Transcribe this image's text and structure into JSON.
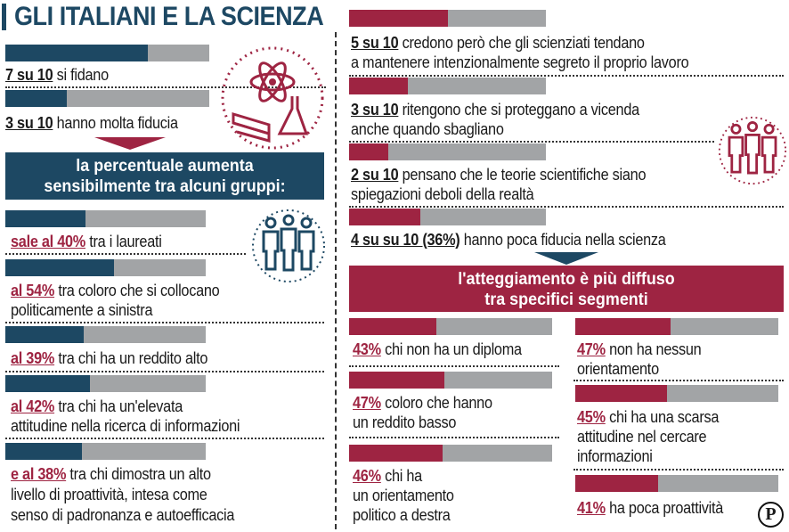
{
  "title": "GLI ITALIANI E LA SCIENZA",
  "colors": {
    "blue": "#1d4863",
    "red": "#9e2442",
    "grey": "#a2a4a6"
  },
  "left_top": [
    {
      "num": "7  su 10",
      "text": " si fidano",
      "fill": 0.7
    },
    {
      "num": "3 su 10",
      "text": " hanno molta fiducia",
      "fill": 0.3
    }
  ],
  "left_banner": {
    "line1": "la percentuale aumenta",
    "line2": "sensibilmente tra alcuni gruppi:"
  },
  "left_groups": [
    {
      "num": "sale al 40%",
      "line1": " tra i laureati",
      "line2": "",
      "fill": 0.4
    },
    {
      "num": "al 54%",
      "line1": " tra coloro che si collocano",
      "line2": "politicamente a sinistra",
      "fill": 0.54
    },
    {
      "num": "al 39%",
      "line1": " tra chi ha un reddito alto",
      "line2": "",
      "fill": 0.39
    },
    {
      "num": "al 42%",
      "line1": " tra chi ha un'elevata",
      "line2": "attitudine nella ricerca di informazioni",
      "fill": 0.42
    },
    {
      "num": "e al 38%",
      "line1": " tra chi dimostra un alto",
      "line2": "livello di proattività, intesa come",
      "line3": "senso di padronanza e autoefficacia",
      "fill": 0.38
    }
  ],
  "right_top": [
    {
      "num": "5  su 10",
      "line1": " credono però che gli scienziati tendano",
      "line2": "a mantenere intenzionalmente segreto il proprio lavoro",
      "fill": 0.5
    },
    {
      "num": "3 su 10",
      "line1": " ritengono che si proteggano a vicenda",
      "line2": "anche quando sbagliano",
      "fill": 0.3
    },
    {
      "num": "2  su 10",
      "line1": " pensano che le teorie scientifiche siano",
      "line2": "spiegazioni deboli della realtà",
      "fill": 0.2
    },
    {
      "num": "4 su  su 10 (36%)",
      "line1": " hanno poca fiducia nella scienza",
      "line2": "",
      "fill": 0.36
    }
  ],
  "right_banner": {
    "line1": "l'atteggiamento è più diffuso",
    "line2": "tra specifici segmenti"
  },
  "segments_left": [
    {
      "num": "43%",
      "line1": " chi non ha un diploma",
      "line2": "",
      "line3": "",
      "fill": 0.43
    },
    {
      "num": "47%",
      "line1": " coloro che hanno",
      "line2": "un reddito basso",
      "line3": "",
      "fill": 0.47
    },
    {
      "num": "46%",
      "line1": " chi ha",
      "line2": "un orientamento",
      "line3": "politico a destra",
      "fill": 0.46
    }
  ],
  "segments_right": [
    {
      "num": "47%",
      "line1": " non ha nessun",
      "line2": "orientamento",
      "line3": "",
      "fill": 0.47
    },
    {
      "num": "45%",
      "line1": " chi ha una scarsa",
      "line2": "attitudine nel cercare",
      "line3": "informazioni",
      "fill": 0.45
    },
    {
      "num": "41%",
      "line1": " ha poca proattività",
      "line2": "",
      "line3": "",
      "fill": 0.41
    }
  ],
  "logo": "P",
  "icons": [
    "science-icon",
    "people-group-icon",
    "people-group-icon"
  ]
}
